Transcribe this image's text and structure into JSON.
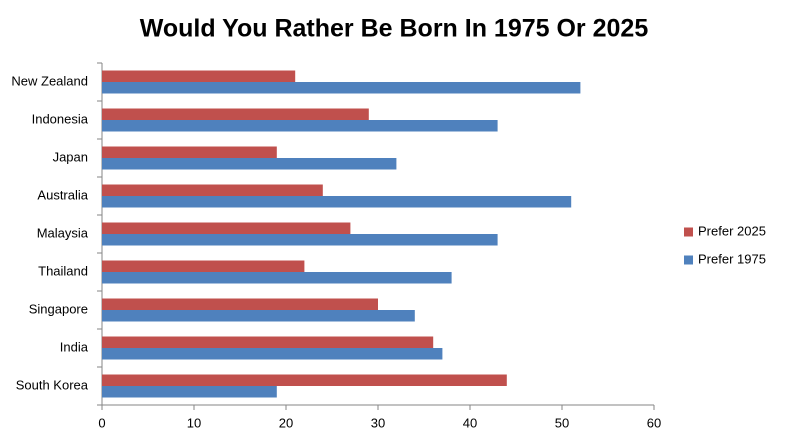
{
  "chart_data": {
    "type": "hbar",
    "title": "Would You Rather Be Born In 1975 Or 2025",
    "categories": [
      "New Zealand",
      "Indonesia",
      "Japan",
      "Australia",
      "Malaysia",
      "Thailand",
      "Singapore",
      "India",
      "South Korea"
    ],
    "series": [
      {
        "name": "Prefer 2025",
        "color": "#c0504d",
        "values": [
          21,
          29,
          19,
          24,
          27,
          22,
          30,
          36,
          44
        ]
      },
      {
        "name": "Prefer 1975",
        "color": "#4f81bd",
        "values": [
          52,
          43,
          32,
          51,
          43,
          38,
          34,
          37,
          19
        ]
      }
    ],
    "xlim": [
      0,
      60
    ],
    "xticks": [
      0,
      10,
      20,
      30,
      40,
      50,
      60
    ],
    "grid": false,
    "legend": "right"
  }
}
